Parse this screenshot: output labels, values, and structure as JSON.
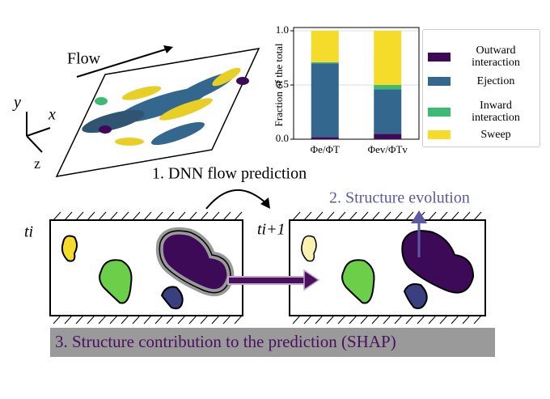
{
  "chart_data": {
    "type": "stacked-bar",
    "ylabel": "Fraction of the total",
    "categories": [
      "Φe/ΦT",
      "Φev/ΦTv"
    ],
    "series": [
      {
        "name": "Outward interaction",
        "color": "#3d0a57",
        "values": [
          0.02,
          0.05
        ]
      },
      {
        "name": "Ejection",
        "color": "#33678d",
        "values": [
          0.68,
          0.41
        ]
      },
      {
        "name": "Inward interaction",
        "color": "#3dba74",
        "values": [
          0.01,
          0.04
        ]
      },
      {
        "name": "Sweep",
        "color": "#f5dc2a",
        "values": [
          0.29,
          0.5
        ]
      }
    ],
    "ylim": [
      0,
      1.03
    ],
    "yticks": [
      {
        "value": 0,
        "label": "0.0"
      },
      0.5,
      {
        "value": 1,
        "label": "1.0"
      }
    ],
    "grid": true,
    "legend": "right"
  },
  "diagram": {
    "flow_label": "Flow",
    "axes": {
      "x": "x",
      "y": "y",
      "z": "z"
    },
    "step1": "1. DNN flow prediction",
    "step2": "2. Structure evolution",
    "step3": "3. Structure contribution to the prediction (SHAP)",
    "panel_left": "ti",
    "panel_right": "ti+1"
  }
}
